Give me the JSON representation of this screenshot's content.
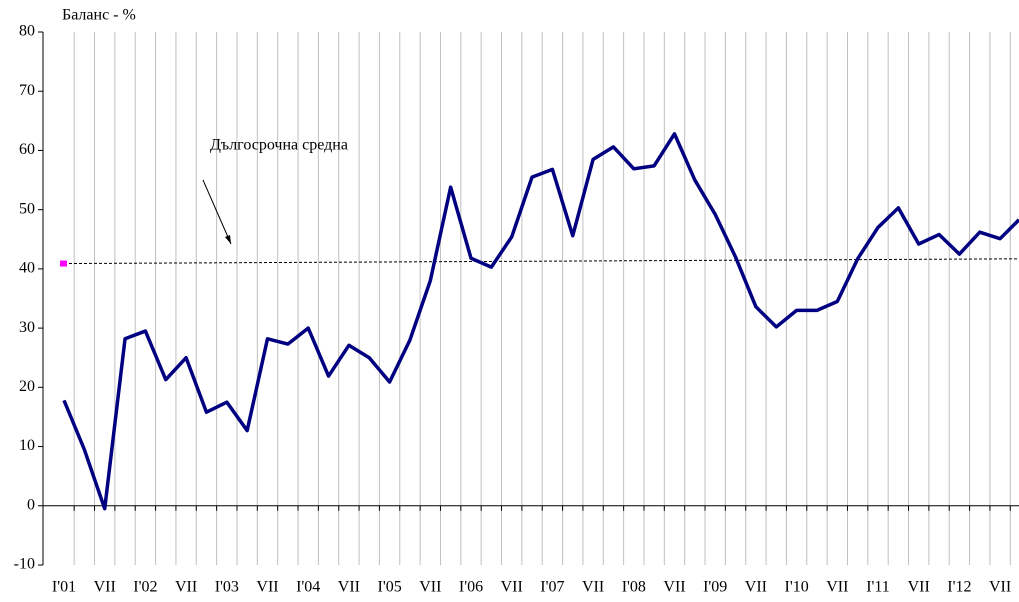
{
  "chart_data": {
    "type": "line",
    "y_label": "Баланс - %",
    "categories": [
      "I'01",
      null,
      "VII",
      null,
      "I'02",
      null,
      "VII",
      null,
      "I'03",
      null,
      "VII",
      null,
      "I'04",
      null,
      "VII",
      null,
      "I'05",
      null,
      "VII",
      null,
      "I'06",
      null,
      "VII",
      null,
      "I'07",
      null,
      "VII",
      null,
      "I'08",
      null,
      "VII",
      null,
      "I'09",
      null,
      "VII",
      null,
      "I'10",
      null,
      "VII",
      null,
      "I'11",
      null,
      "VII",
      null,
      "I'12",
      null,
      "VII",
      null
    ],
    "series": [
      {
        "name": "Баланс",
        "color": "#000080",
        "values": [
          17.8,
          9.5,
          -0.5,
          28.2,
          29.5,
          21.3,
          25,
          15.8,
          17.5,
          12.7,
          28.2,
          27.3,
          30,
          21.9,
          27.1,
          25,
          20.9,
          28,
          38,
          53.8,
          41.8,
          40.3,
          45.4,
          55.5,
          56.8,
          45.6,
          58.5,
          60.6,
          56.9,
          57.4,
          62.8,
          55,
          49.2,
          42,
          33.6,
          30.2,
          33,
          33,
          34.5,
          41.7,
          47,
          50.3,
          44.2,
          45.8,
          42.5,
          46.2,
          45.1,
          48.3
        ]
      }
    ],
    "reference_line": {
      "label": "Дългосрочна средна",
      "values": [
        40.9,
        41.7
      ],
      "color": "#000000",
      "marker_color": "#ff00ff"
    },
    "ylim": [
      -10,
      80
    ],
    "yticks": [
      -10,
      0,
      10,
      20,
      30,
      40,
      50,
      60,
      70,
      80
    ],
    "grid": true
  }
}
